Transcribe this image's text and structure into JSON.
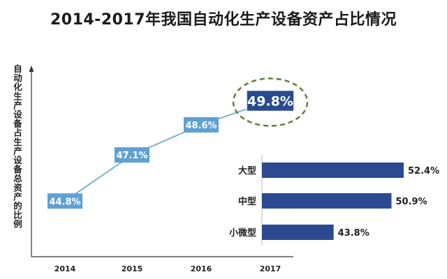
{
  "title": "2014-2017年我国自动化生产设备资产占比情况",
  "chart_data": [
    {
      "type": "line",
      "title": "2014-2017年我国自动化生产设备资产占比情况",
      "ylabel": "自动化生产设备占生产设备总资产的比例",
      "xlabel": "",
      "x": [
        "2014",
        "2015",
        "2016",
        "2017"
      ],
      "values": [
        44.8,
        47.1,
        48.6,
        49.8
      ],
      "data_labels": [
        "44.8%",
        "47.1%",
        "48.6%",
        "49.8%"
      ],
      "highlight": "2017",
      "ylim": [
        43,
        51
      ],
      "grid": false,
      "legend": "none"
    },
    {
      "type": "bar",
      "orientation": "horizontal",
      "categories": [
        "大型",
        "中型",
        "小微型"
      ],
      "values": [
        52.4,
        50.9,
        43.8
      ],
      "data_labels": [
        "52.4%",
        "50.9%",
        "43.8%"
      ],
      "xlim": [
        35,
        53
      ],
      "grid": false,
      "legend": "none"
    }
  ],
  "colors": {
    "line": "#7fb1d6",
    "label_box": "#5fa1d3",
    "highlight_box": "#294b8e",
    "bar": "#2b4a91",
    "highlight_ellipse": "#5d7e3d",
    "axis": "#333333"
  }
}
